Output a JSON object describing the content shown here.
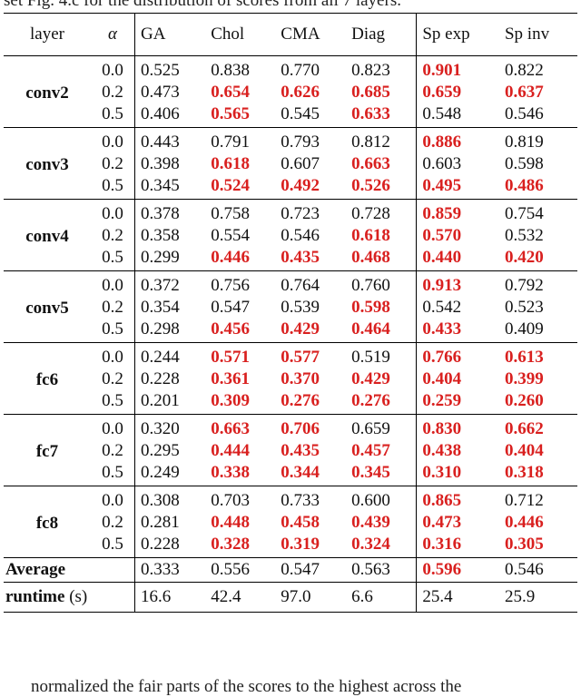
{
  "caption_top": "set Fig. 4.c for the distribution of scores from all 7 layers.",
  "caption_bottom": "normalized the fair parts of the scores to the highest across the",
  "table": {
    "headers": {
      "layer": "layer",
      "alpha": "α",
      "cols": [
        "GA",
        "Chol",
        "CMA",
        "Diag",
        "Sp exp",
        "Sp inv"
      ]
    },
    "groups": [
      {
        "layer": "conv2",
        "rows": [
          {
            "alpha": "0.0",
            "values": [
              "0.525",
              "0.838",
              "0.770",
              "0.823",
              "0.901",
              "0.822"
            ],
            "bold": [
              false,
              false,
              false,
              false,
              true,
              false
            ]
          },
          {
            "alpha": "0.2",
            "values": [
              "0.473",
              "0.654",
              "0.626",
              "0.685",
              "0.659",
              "0.637"
            ],
            "bold": [
              false,
              true,
              true,
              true,
              true,
              true
            ]
          },
          {
            "alpha": "0.5",
            "values": [
              "0.406",
              "0.565",
              "0.545",
              "0.633",
              "0.548",
              "0.546"
            ],
            "bold": [
              false,
              true,
              false,
              true,
              false,
              false
            ]
          }
        ]
      },
      {
        "layer": "conv3",
        "rows": [
          {
            "alpha": "0.0",
            "values": [
              "0.443",
              "0.791",
              "0.793",
              "0.812",
              "0.886",
              "0.819"
            ],
            "bold": [
              false,
              false,
              false,
              false,
              true,
              false
            ]
          },
          {
            "alpha": "0.2",
            "values": [
              "0.398",
              "0.618",
              "0.607",
              "0.663",
              "0.603",
              "0.598"
            ],
            "bold": [
              false,
              true,
              false,
              true,
              false,
              false
            ]
          },
          {
            "alpha": "0.5",
            "values": [
              "0.345",
              "0.524",
              "0.492",
              "0.526",
              "0.495",
              "0.486"
            ],
            "bold": [
              false,
              true,
              true,
              true,
              true,
              true
            ]
          }
        ]
      },
      {
        "layer": "conv4",
        "rows": [
          {
            "alpha": "0.0",
            "values": [
              "0.378",
              "0.758",
              "0.723",
              "0.728",
              "0.859",
              "0.754"
            ],
            "bold": [
              false,
              false,
              false,
              false,
              true,
              false
            ]
          },
          {
            "alpha": "0.2",
            "values": [
              "0.358",
              "0.554",
              "0.546",
              "0.618",
              "0.570",
              "0.532"
            ],
            "bold": [
              false,
              false,
              false,
              true,
              true,
              false
            ]
          },
          {
            "alpha": "0.5",
            "values": [
              "0.299",
              "0.446",
              "0.435",
              "0.468",
              "0.440",
              "0.420"
            ],
            "bold": [
              false,
              true,
              true,
              true,
              true,
              true
            ]
          }
        ]
      },
      {
        "layer": "conv5",
        "rows": [
          {
            "alpha": "0.0",
            "values": [
              "0.372",
              "0.756",
              "0.764",
              "0.760",
              "0.913",
              "0.792"
            ],
            "bold": [
              false,
              false,
              false,
              false,
              true,
              false
            ]
          },
          {
            "alpha": "0.2",
            "values": [
              "0.354",
              "0.547",
              "0.539",
              "0.598",
              "0.542",
              "0.523"
            ],
            "bold": [
              false,
              false,
              false,
              true,
              false,
              false
            ]
          },
          {
            "alpha": "0.5",
            "values": [
              "0.298",
              "0.456",
              "0.429",
              "0.464",
              "0.433",
              "0.409"
            ],
            "bold": [
              false,
              true,
              true,
              true,
              true,
              false
            ]
          }
        ]
      },
      {
        "layer": "fc6",
        "rows": [
          {
            "alpha": "0.0",
            "values": [
              "0.244",
              "0.571",
              "0.577",
              "0.519",
              "0.766",
              "0.613"
            ],
            "bold": [
              false,
              true,
              true,
              false,
              true,
              true
            ]
          },
          {
            "alpha": "0.2",
            "values": [
              "0.228",
              "0.361",
              "0.370",
              "0.429",
              "0.404",
              "0.399"
            ],
            "bold": [
              false,
              true,
              true,
              true,
              true,
              true
            ]
          },
          {
            "alpha": "0.5",
            "values": [
              "0.201",
              "0.309",
              "0.276",
              "0.276",
              "0.259",
              "0.260"
            ],
            "bold": [
              false,
              true,
              true,
              true,
              true,
              true
            ]
          }
        ]
      },
      {
        "layer": "fc7",
        "rows": [
          {
            "alpha": "0.0",
            "values": [
              "0.320",
              "0.663",
              "0.706",
              "0.659",
              "0.830",
              "0.662"
            ],
            "bold": [
              false,
              true,
              true,
              false,
              true,
              true
            ]
          },
          {
            "alpha": "0.2",
            "values": [
              "0.295",
              "0.444",
              "0.435",
              "0.457",
              "0.438",
              "0.404"
            ],
            "bold": [
              false,
              true,
              true,
              true,
              true,
              true
            ]
          },
          {
            "alpha": "0.5",
            "values": [
              "0.249",
              "0.338",
              "0.344",
              "0.345",
              "0.310",
              "0.318"
            ],
            "bold": [
              false,
              true,
              true,
              true,
              true,
              true
            ]
          }
        ]
      },
      {
        "layer": "fc8",
        "rows": [
          {
            "alpha": "0.0",
            "values": [
              "0.308",
              "0.703",
              "0.733",
              "0.600",
              "0.865",
              "0.712"
            ],
            "bold": [
              false,
              false,
              false,
              false,
              true,
              false
            ]
          },
          {
            "alpha": "0.2",
            "values": [
              "0.281",
              "0.448",
              "0.458",
              "0.439",
              "0.473",
              "0.446"
            ],
            "bold": [
              false,
              true,
              true,
              true,
              true,
              true
            ]
          },
          {
            "alpha": "0.5",
            "values": [
              "0.228",
              "0.328",
              "0.319",
              "0.324",
              "0.316",
              "0.305"
            ],
            "bold": [
              false,
              true,
              true,
              true,
              true,
              true
            ]
          }
        ]
      }
    ],
    "average": {
      "label": "Average",
      "values": [
        "0.333",
        "0.556",
        "0.547",
        "0.563",
        "0.596",
        "0.546"
      ],
      "bold": [
        false,
        false,
        false,
        false,
        true,
        false
      ]
    },
    "runtime": {
      "label": "runtime",
      "unit": " (s)",
      "values": [
        "16.6",
        "42.4",
        "97.0",
        "6.6",
        "25.4",
        "25.9"
      ]
    }
  },
  "colors": {
    "highlight": "#d9201f",
    "text": "#111111"
  }
}
